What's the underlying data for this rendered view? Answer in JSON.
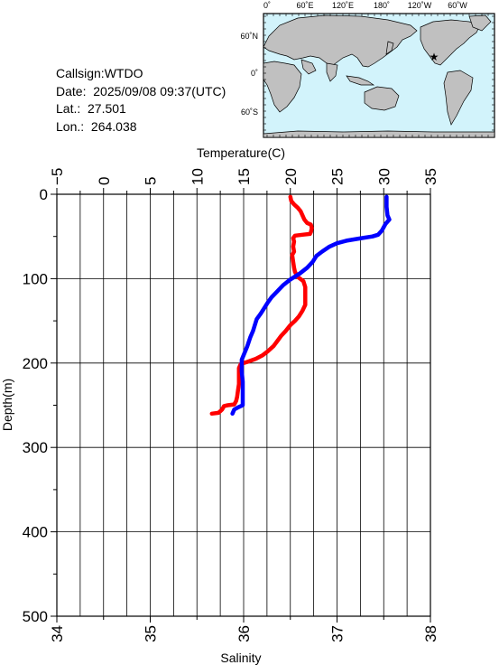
{
  "info": {
    "callsign": "Callsign:WTDO",
    "date": "Date:  2025/09/08 09:37(UTC)",
    "lat": "Lat.:  27.501",
    "lon": "Lon.:  264.038"
  },
  "map": {
    "top_ticks": [
      "0˚",
      "60˚E",
      "120˚E",
      "180˚",
      "120˚W",
      "60˚W"
    ],
    "side_ticks": [
      "60˚N",
      "0˚",
      "60˚S"
    ],
    "ocean_color": "#d2f3fb",
    "land_color": "#c0c0c0",
    "marker_color": "#ff0000",
    "marker_icon": "star-icon"
  },
  "chart_data": {
    "type": "line",
    "top_axis": {
      "label": "Temperature(C)",
      "range": [
        -5,
        35
      ],
      "ticks": [
        "−5",
        "0",
        "5",
        "10",
        "15",
        "20",
        "25",
        "30",
        "35"
      ]
    },
    "bottom_axis": {
      "label": "Salinity",
      "range": [
        34,
        38
      ],
      "ticks": [
        "34",
        "35",
        "36",
        "37",
        "38"
      ]
    },
    "y_axis": {
      "label": "Depth(m)",
      "range": [
        0,
        500
      ],
      "inverted": true,
      "ticks": [
        "0",
        "100",
        "200",
        "300",
        "400",
        "500"
      ]
    },
    "grid": true,
    "series": [
      {
        "color": "#ff0000",
        "axis": "temperature",
        "points": [
          [
            20,
            3
          ],
          [
            20.1,
            8
          ],
          [
            20.4,
            12
          ],
          [
            20.8,
            16
          ],
          [
            21.1,
            20
          ],
          [
            21.3,
            25
          ],
          [
            21.5,
            30
          ],
          [
            21.8,
            34
          ],
          [
            22.2,
            36
          ],
          [
            22.3,
            40
          ],
          [
            22.2,
            45
          ],
          [
            22.1,
            47
          ],
          [
            21.3,
            48
          ],
          [
            20.5,
            49
          ],
          [
            20.3,
            52
          ],
          [
            20.4,
            56
          ],
          [
            20.3,
            62
          ],
          [
            20.4,
            68
          ],
          [
            20.2,
            72
          ],
          [
            20.3,
            80
          ],
          [
            20.4,
            87
          ],
          [
            20.5,
            92
          ],
          [
            20.8,
            98
          ],
          [
            21.4,
            103
          ],
          [
            21.6,
            110
          ],
          [
            21.6,
            118
          ],
          [
            21.6,
            125
          ],
          [
            21.6,
            131
          ],
          [
            21.3,
            138
          ],
          [
            20.9,
            145
          ],
          [
            20.5,
            150
          ],
          [
            20.0,
            155
          ],
          [
            19.5,
            162
          ],
          [
            19.0,
            168
          ],
          [
            18.6,
            174
          ],
          [
            18.2,
            180
          ],
          [
            17.6,
            186
          ],
          [
            17.0,
            191
          ],
          [
            16.3,
            195
          ],
          [
            15.3,
            199
          ],
          [
            14.7,
            201
          ],
          [
            14.5,
            206
          ],
          [
            14.5,
            215
          ],
          [
            14.5,
            225
          ],
          [
            14.4,
            232
          ],
          [
            14.3,
            240
          ],
          [
            14.2,
            245
          ],
          [
            14.0,
            249
          ],
          [
            13.3,
            250
          ],
          [
            12.9,
            251
          ],
          [
            12.7,
            255
          ],
          [
            12.3,
            259
          ],
          [
            11.6,
            260
          ]
        ]
      },
      {
        "color": "#0000ff",
        "axis": "salinity",
        "points": [
          [
            37.53,
            3
          ],
          [
            37.53,
            15
          ],
          [
            37.54,
            25
          ],
          [
            37.56,
            30
          ],
          [
            37.52,
            35
          ],
          [
            37.48,
            43
          ],
          [
            37.44,
            48
          ],
          [
            37.38,
            50
          ],
          [
            37.26,
            52
          ],
          [
            37.1,
            55
          ],
          [
            37.0,
            58
          ],
          [
            36.92,
            62
          ],
          [
            36.84,
            68
          ],
          [
            36.78,
            73
          ],
          [
            36.74,
            80
          ],
          [
            36.68,
            87
          ],
          [
            36.6,
            94
          ],
          [
            36.5,
            101
          ],
          [
            36.42,
            108
          ],
          [
            36.36,
            115
          ],
          [
            36.3,
            122
          ],
          [
            36.26,
            128
          ],
          [
            36.22,
            135
          ],
          [
            36.18,
            142
          ],
          [
            36.14,
            148
          ],
          [
            36.12,
            155
          ],
          [
            36.1,
            162
          ],
          [
            36.07,
            170
          ],
          [
            36.04,
            180
          ],
          [
            36.01,
            188
          ],
          [
            35.98,
            196
          ],
          [
            35.98,
            202
          ],
          [
            35.98,
            210
          ],
          [
            35.99,
            222
          ],
          [
            35.99,
            235
          ],
          [
            35.99,
            244
          ],
          [
            35.99,
            250
          ],
          [
            35.95,
            252
          ],
          [
            35.9,
            255
          ],
          [
            35.88,
            260
          ]
        ]
      }
    ]
  }
}
